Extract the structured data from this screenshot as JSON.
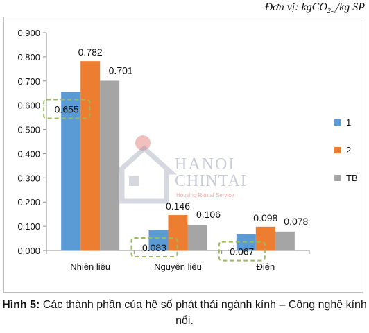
{
  "unit_label": {
    "prefix": "Đơn vị: kgCO",
    "sub": "2-e",
    "suffix": "/kg SP"
  },
  "caption": {
    "label": "Hình 5:",
    "text": " Các thành phần của hệ số phát thải ngành kính – Công nghệ kính nổi."
  },
  "watermark": {
    "line1": "HANOI",
    "line2": "CHINTAI",
    "tagline": "Housing Rental Service",
    "color": "#8a8fa6",
    "accent": "#e88b8b"
  },
  "colors": {
    "series": [
      "#5b9bd5",
      "#ed7d31",
      "#a5a5a5"
    ],
    "highlight_box": "#9bbb59"
  },
  "chart_data": {
    "type": "bar",
    "categories": [
      "Nhiên liệu",
      "Nguyên liệu",
      "Điện"
    ],
    "series": [
      {
        "name": "1",
        "values": [
          0.655,
          0.083,
          0.067
        ],
        "labels": [
          "0.655",
          "0.083",
          "0.067"
        ]
      },
      {
        "name": "2",
        "values": [
          0.782,
          0.146,
          0.098
        ],
        "labels": [
          "0.782",
          "0.146",
          "0.098"
        ]
      },
      {
        "name": "TB",
        "values": [
          0.701,
          0.106,
          0.078
        ],
        "labels": [
          "0.701",
          "0.106",
          "0.078"
        ]
      }
    ],
    "ylim": [
      0,
      0.9
    ],
    "yticks": [
      0,
      0.1,
      0.2,
      0.3,
      0.4,
      0.5,
      0.6,
      0.7,
      0.8,
      0.9
    ],
    "ytick_labels": [
      "0.000",
      "0.100",
      "0.200",
      "0.300",
      "0.400",
      "0.500",
      "0.600",
      "0.700",
      "0.800",
      "0.900"
    ],
    "grid": false,
    "legend_position": "right",
    "highlighted_series": "1"
  }
}
